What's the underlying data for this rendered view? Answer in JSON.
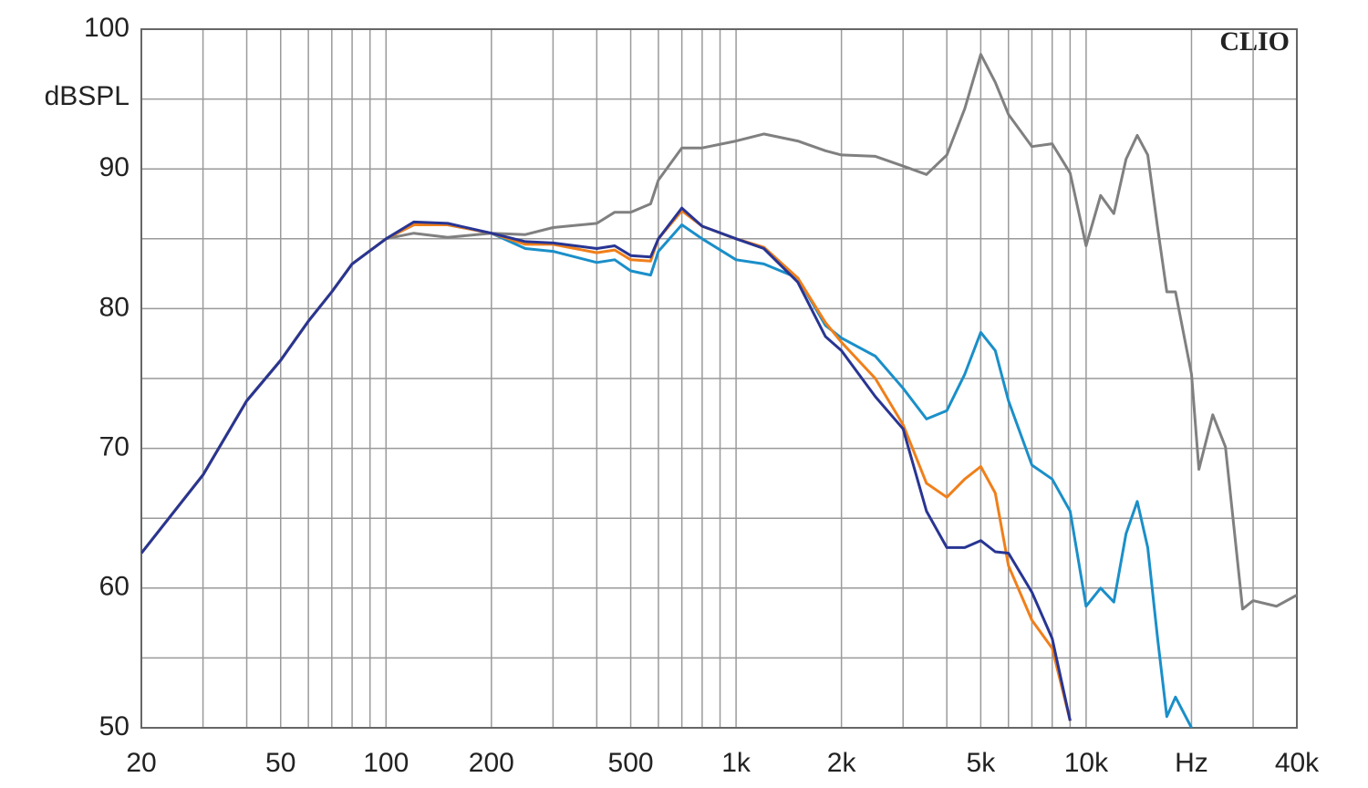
{
  "chart_data": {
    "type": "line",
    "ylabel": "dBSPL",
    "brand": "CLIO",
    "log_x": true,
    "grid": true,
    "xlim": [
      20,
      40000
    ],
    "ylim": [
      50,
      100
    ],
    "xticks": [
      20,
      50,
      100,
      200,
      500,
      {
        "value": 1000,
        "label": "1k"
      },
      {
        "value": 2000,
        "label": "2k"
      },
      {
        "value": 5000,
        "label": "5k"
      },
      {
        "value": 10000,
        "label": "10k"
      },
      {
        "value": 20000,
        "label": "Hz"
      },
      {
        "value": 40000,
        "label": "40k"
      }
    ],
    "x_minor_ticks": [
      30,
      40,
      60,
      70,
      80,
      90,
      300,
      400,
      600,
      700,
      800,
      900,
      3000,
      4000,
      6000,
      7000,
      8000,
      9000,
      30000
    ],
    "yticks": [
      50,
      60,
      70,
      80,
      90,
      100
    ],
    "y_minor_ticks": [
      55,
      65,
      75,
      85,
      95
    ],
    "x": [
      20,
      30,
      40,
      50,
      60,
      70,
      80,
      100,
      120,
      150,
      200,
      250,
      300,
      400,
      450,
      500,
      570,
      600,
      700,
      800,
      1000,
      1200,
      1500,
      1800,
      2000,
      2500,
      3000,
      3500,
      4000,
      4500,
      5000,
      5500,
      6000,
      7000,
      8000,
      9000,
      10000,
      11000,
      12000,
      13000,
      14000,
      15000,
      16000,
      17000,
      18000,
      20000,
      21000,
      23000,
      25000,
      28000,
      30000,
      35000,
      40000
    ],
    "series": [
      {
        "color": "#808080",
        "values": [
          62.5,
          68.1,
          73.4,
          76.3,
          79.1,
          81.2,
          83.2,
          85.0,
          85.4,
          85.1,
          85.4,
          85.3,
          85.8,
          86.1,
          86.9,
          86.9,
          87.5,
          89.2,
          91.5,
          91.5,
          92.0,
          92.5,
          92.0,
          91.3,
          91.0,
          90.9,
          90.2,
          89.6,
          91.0,
          94.3,
          98.2,
          96.2,
          93.9,
          91.6,
          91.8,
          89.7,
          84.5,
          88.1,
          86.8,
          90.7,
          92.4,
          91.0,
          85.8,
          81.2,
          81.2,
          75.3,
          68.5,
          72.4,
          70.1,
          58.5,
          59.1,
          58.7,
          59.5
        ]
      },
      {
        "color": "#1a8fc9",
        "values": [
          62.5,
          68.1,
          73.4,
          76.3,
          79.1,
          81.2,
          83.2,
          85.0,
          86.0,
          86.0,
          85.4,
          84.3,
          84.1,
          83.3,
          83.5,
          82.7,
          82.4,
          84.1,
          86.0,
          85.0,
          83.5,
          83.2,
          82.2,
          78.8,
          77.9,
          76.6,
          74.3,
          72.1,
          72.7,
          75.3,
          78.3,
          77.0,
          73.4,
          68.8,
          67.8,
          65.5,
          58.7,
          60.0,
          59.0,
          63.9,
          66.2,
          62.9,
          56.4,
          50.8,
          52.2,
          50.0,
          null,
          null,
          null,
          null,
          null,
          null,
          null
        ]
      },
      {
        "color": "#f07f1a",
        "values": [
          62.5,
          68.1,
          73.4,
          76.3,
          79.1,
          81.2,
          83.2,
          85.0,
          86.0,
          86.0,
          85.4,
          84.6,
          84.6,
          84.0,
          84.2,
          83.5,
          83.4,
          85.0,
          87.0,
          85.9,
          85.0,
          84.4,
          82.2,
          79.0,
          77.6,
          75.0,
          71.7,
          67.5,
          66.5,
          67.8,
          68.7,
          66.8,
          61.6,
          57.7,
          55.7,
          50.5,
          null,
          null,
          null,
          null,
          null,
          null,
          null,
          null,
          null,
          null,
          null,
          null,
          null,
          null,
          null,
          null,
          null
        ]
      },
      {
        "color": "#283593",
        "values": [
          62.5,
          68.1,
          73.4,
          76.3,
          79.1,
          81.2,
          83.2,
          85.0,
          86.2,
          86.1,
          85.4,
          84.8,
          84.7,
          84.3,
          84.5,
          83.8,
          83.7,
          85.0,
          87.2,
          85.9,
          85.0,
          84.3,
          81.9,
          78.0,
          77.0,
          73.7,
          71.4,
          65.5,
          62.9,
          62.9,
          63.4,
          62.6,
          62.5,
          59.7,
          56.4,
          50.5,
          null,
          null,
          null,
          null,
          null,
          null,
          null,
          null,
          null,
          null,
          null,
          null,
          null,
          null,
          null,
          null,
          null
        ]
      }
    ]
  }
}
